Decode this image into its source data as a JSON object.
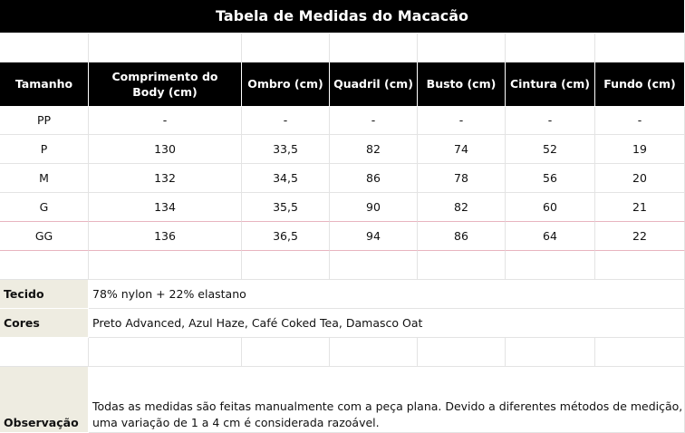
{
  "title": "Tabela de Medidas do Macacão",
  "table": {
    "headers": [
      "Tamanho",
      "Comprimento do Body (cm)",
      "Ombro (cm)",
      "Quadril (cm)",
      "Busto (cm)",
      "Cintura (cm)",
      "Fundo (cm)"
    ],
    "rows": [
      [
        "PP",
        "-",
        "-",
        "-",
        "-",
        "-",
        "-"
      ],
      [
        "P",
        "130",
        "33,5",
        "82",
        "74",
        "52",
        "19"
      ],
      [
        "M",
        "132",
        "34,5",
        "86",
        "78",
        "56",
        "20"
      ],
      [
        "G",
        "134",
        "35,5",
        "90",
        "82",
        "60",
        "21"
      ],
      [
        "GG",
        "136",
        "36,5",
        "94",
        "86",
        "64",
        "22"
      ]
    ]
  },
  "info": [
    {
      "label": "Tecido",
      "value": "78% nylon + 22% elastano"
    },
    {
      "label": "Cores",
      "value": "Preto Advanced, Azul Haze, Café Coked Tea, Damasco Oat"
    },
    {
      "label": "Observação",
      "value": "Todas as medidas são feitas manualmente com a peça plana. Devido a diferentes métodos de medição, uma variação de 1 a 4 cm é considerada razoável."
    }
  ]
}
